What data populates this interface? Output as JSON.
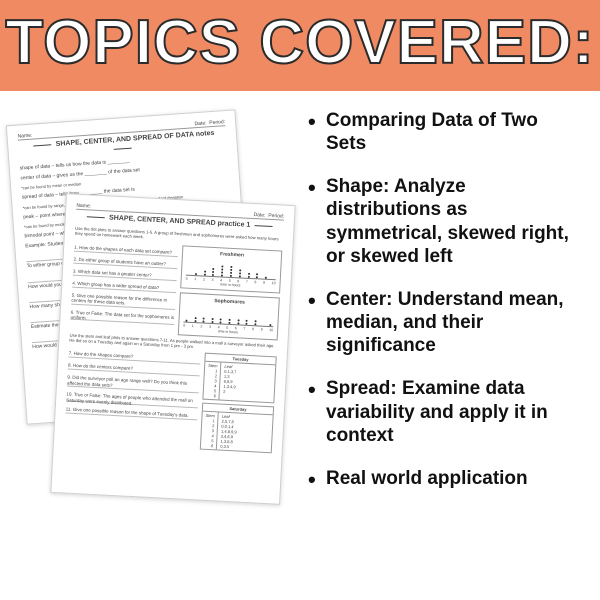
{
  "banner": {
    "title": "TOPICS COVERED:",
    "bg_color": "#f08a63",
    "text_fill": "#ffffff",
    "text_stroke": "#2b2b2b",
    "font_size": 62
  },
  "topics": {
    "item_font_size": 19,
    "item_color": "#111111",
    "items": [
      "Comparing Data of Two Sets",
      "Shape: Analyze distributions as symmetrical, skewed right, or skewed left",
      "Center: Understand mean, median, and their significance",
      "Spread: Examine data variability and apply it in context",
      "Real world application"
    ]
  },
  "sheets": {
    "back": {
      "name_label": "Name:",
      "date_label": "Date:",
      "period_label": "Period:",
      "title": "SHAPE, CENTER, AND SPREAD OF DATA notes",
      "defs": [
        "shape of data – tells us how the data is ________",
        "center of data – gives us the ________ of the data set",
        "*can be found by mean or median",
        "spread of data – tells how ________ the data set is",
        "*can be found by range, interquartile range, mean absolute deviation, or standard deviation",
        "peak – point where the data is ________ than the other parts of the data set",
        "*can be found by mode",
        "bimodal point – when there are ________ peaks",
        "Example: Students completed an experiment regarding the amount of time spent ________"
      ],
      "side_prompts": [
        "To either group of students have an outlier?",
        "How would you describe ________",
        "How many shapes have an ________",
        "Estimate the center of ________",
        "How would you ________"
      ]
    },
    "front": {
      "name_label": "Name:",
      "date_label": "Date:",
      "period_label": "Period:",
      "title": "SHAPE, CENTER, AND SPREAD practice 1",
      "intro": "Use the dot plots to answer questions 1-5. A group of freshmen and sophomores were asked how many hours they spend on homework each week.",
      "questions": [
        "1. How do the shapes of each data set compare?",
        "2. Do either group of students have an outlier?",
        "3. Which data set has a greater center?",
        "4. Which group has a wider spread of data?",
        "5. Give one possible reason for the difference in centers for these data sets.",
        "6. True or False: The data set for the sophomores is uniform.",
        "7. How do the shapes compare?",
        "8. How do the centers compare?",
        "9. Did the surveyor poll an age range well? Do you think this affected the data sets?",
        "10. True or False: The ages of people who attended the mall on Saturday were evenly distributed.",
        "11. Give one possible reason for the shape of Tuesday's data."
      ],
      "dotplots": {
        "freshmen": {
          "title": "Freshmen",
          "xlabel": "time in hours",
          "ticks": [
            "0",
            "1",
            "2",
            "3",
            "4",
            "5",
            "6",
            "7",
            "8",
            "9",
            "10"
          ],
          "counts": [
            0,
            1,
            2,
            3,
            4,
            4,
            3,
            2,
            2,
            1,
            0
          ]
        },
        "sophomores": {
          "title": "Sophomores",
          "xlabel": "time in hours",
          "ticks": [
            "0",
            "1",
            "2",
            "3",
            "4",
            "5",
            "6",
            "7",
            "8",
            "9",
            "10"
          ],
          "counts": [
            1,
            2,
            2,
            2,
            2,
            2,
            2,
            2,
            2,
            0,
            1
          ]
        }
      },
      "stemplots": {
        "tuesday": {
          "title": "Tuesday",
          "stem_label": "Stem",
          "leaf_label": "Leaf",
          "stems": [
            "1",
            "2",
            "3",
            "4",
            "5",
            "6"
          ],
          "leaves": [
            "",
            "0,1,3,7",
            "1,3",
            "6,8,9",
            "1,3,4,9",
            "2"
          ]
        },
        "saturday": {
          "title": "Saturday",
          "stem_label": "Stem",
          "leaf_label": "Leaf",
          "stems": [
            "1",
            "2",
            "3",
            "4",
            "5",
            "6"
          ],
          "leaves": [
            "2,5,7,8",
            "0,0,1,4",
            "1,4,8,9,9",
            "2,4,6,9",
            "1,3,8,8",
            "0,3,5"
          ]
        }
      },
      "intro2": "Use the stem and leaf plots to answer questions 7-11. As people walked into a mall a surveyor asked their age. He did so on a Tuesday and again on a Saturday from 1 pm - 3 pm."
    }
  },
  "layout": {
    "page_bg": "#ffffff",
    "sheet_border": "#cfcfcf",
    "sheet_shadow": "rgba(0,0,0,0.18)"
  }
}
